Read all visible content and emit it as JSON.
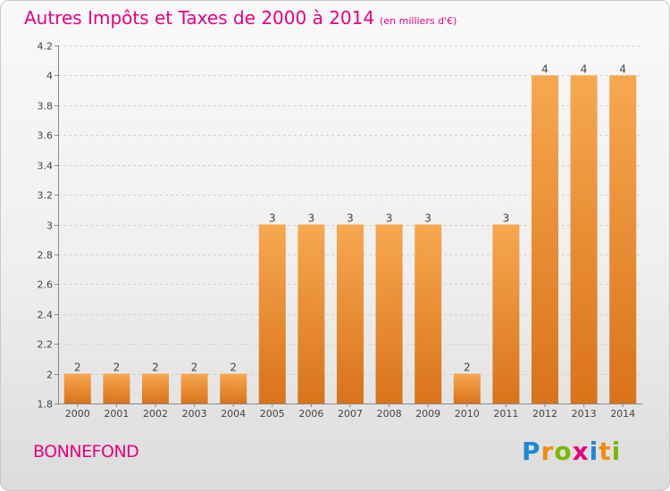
{
  "header": {
    "title": "Autres Impôts et Taxes de 2000 à 2014",
    "unit": "(en milliers d'€)"
  },
  "footer": {
    "commune": "BONNEFOND",
    "logo_letters": [
      "P",
      "r",
      "o",
      "x",
      "i",
      "t",
      "i"
    ],
    "logo_colors": [
      "#1e88d6",
      "#f28c0f",
      "#7ab800",
      "#e5007e",
      "#1e88d6",
      "#f28c0f",
      "#7ab800"
    ]
  },
  "colors": {
    "title": "#e5007e",
    "bar_top": "#f7a84f",
    "bar_bottom": "#d9731a"
  },
  "chart_data": {
    "type": "bar",
    "title": "Autres Impôts et Taxes de 2000 à 2014",
    "xlabel": "",
    "ylabel": "",
    "categories": [
      "2000",
      "2001",
      "2002",
      "2003",
      "2004",
      "2005",
      "2006",
      "2007",
      "2008",
      "2009",
      "2010",
      "2011",
      "2012",
      "2013",
      "2014"
    ],
    "values": [
      2,
      2,
      2,
      2,
      2,
      3,
      3,
      3,
      3,
      3,
      2,
      3,
      4,
      4,
      4
    ],
    "data_labels": [
      "2",
      "2",
      "2",
      "2",
      "2",
      "3",
      "3",
      "3",
      "3",
      "3",
      "2",
      "3",
      "4",
      "4",
      "4"
    ],
    "ylim": [
      1.8,
      4.2
    ],
    "yticks": [
      1.8,
      2,
      2.2,
      2.4,
      2.6,
      2.8,
      3,
      3.2,
      3.4,
      3.6,
      3.8,
      4,
      4.2
    ],
    "ytick_labels": [
      "1.8",
      "2",
      "2.2",
      "2.4",
      "2.6",
      "2.8",
      "3",
      "3.2",
      "3.4",
      "3.6",
      "3.8",
      "4",
      "4.2"
    ],
    "plotted_values": [
      2,
      2,
      2,
      2,
      2,
      3,
      3,
      3,
      3,
      3,
      2,
      3,
      4,
      4,
      4
    ],
    "grid": true
  }
}
